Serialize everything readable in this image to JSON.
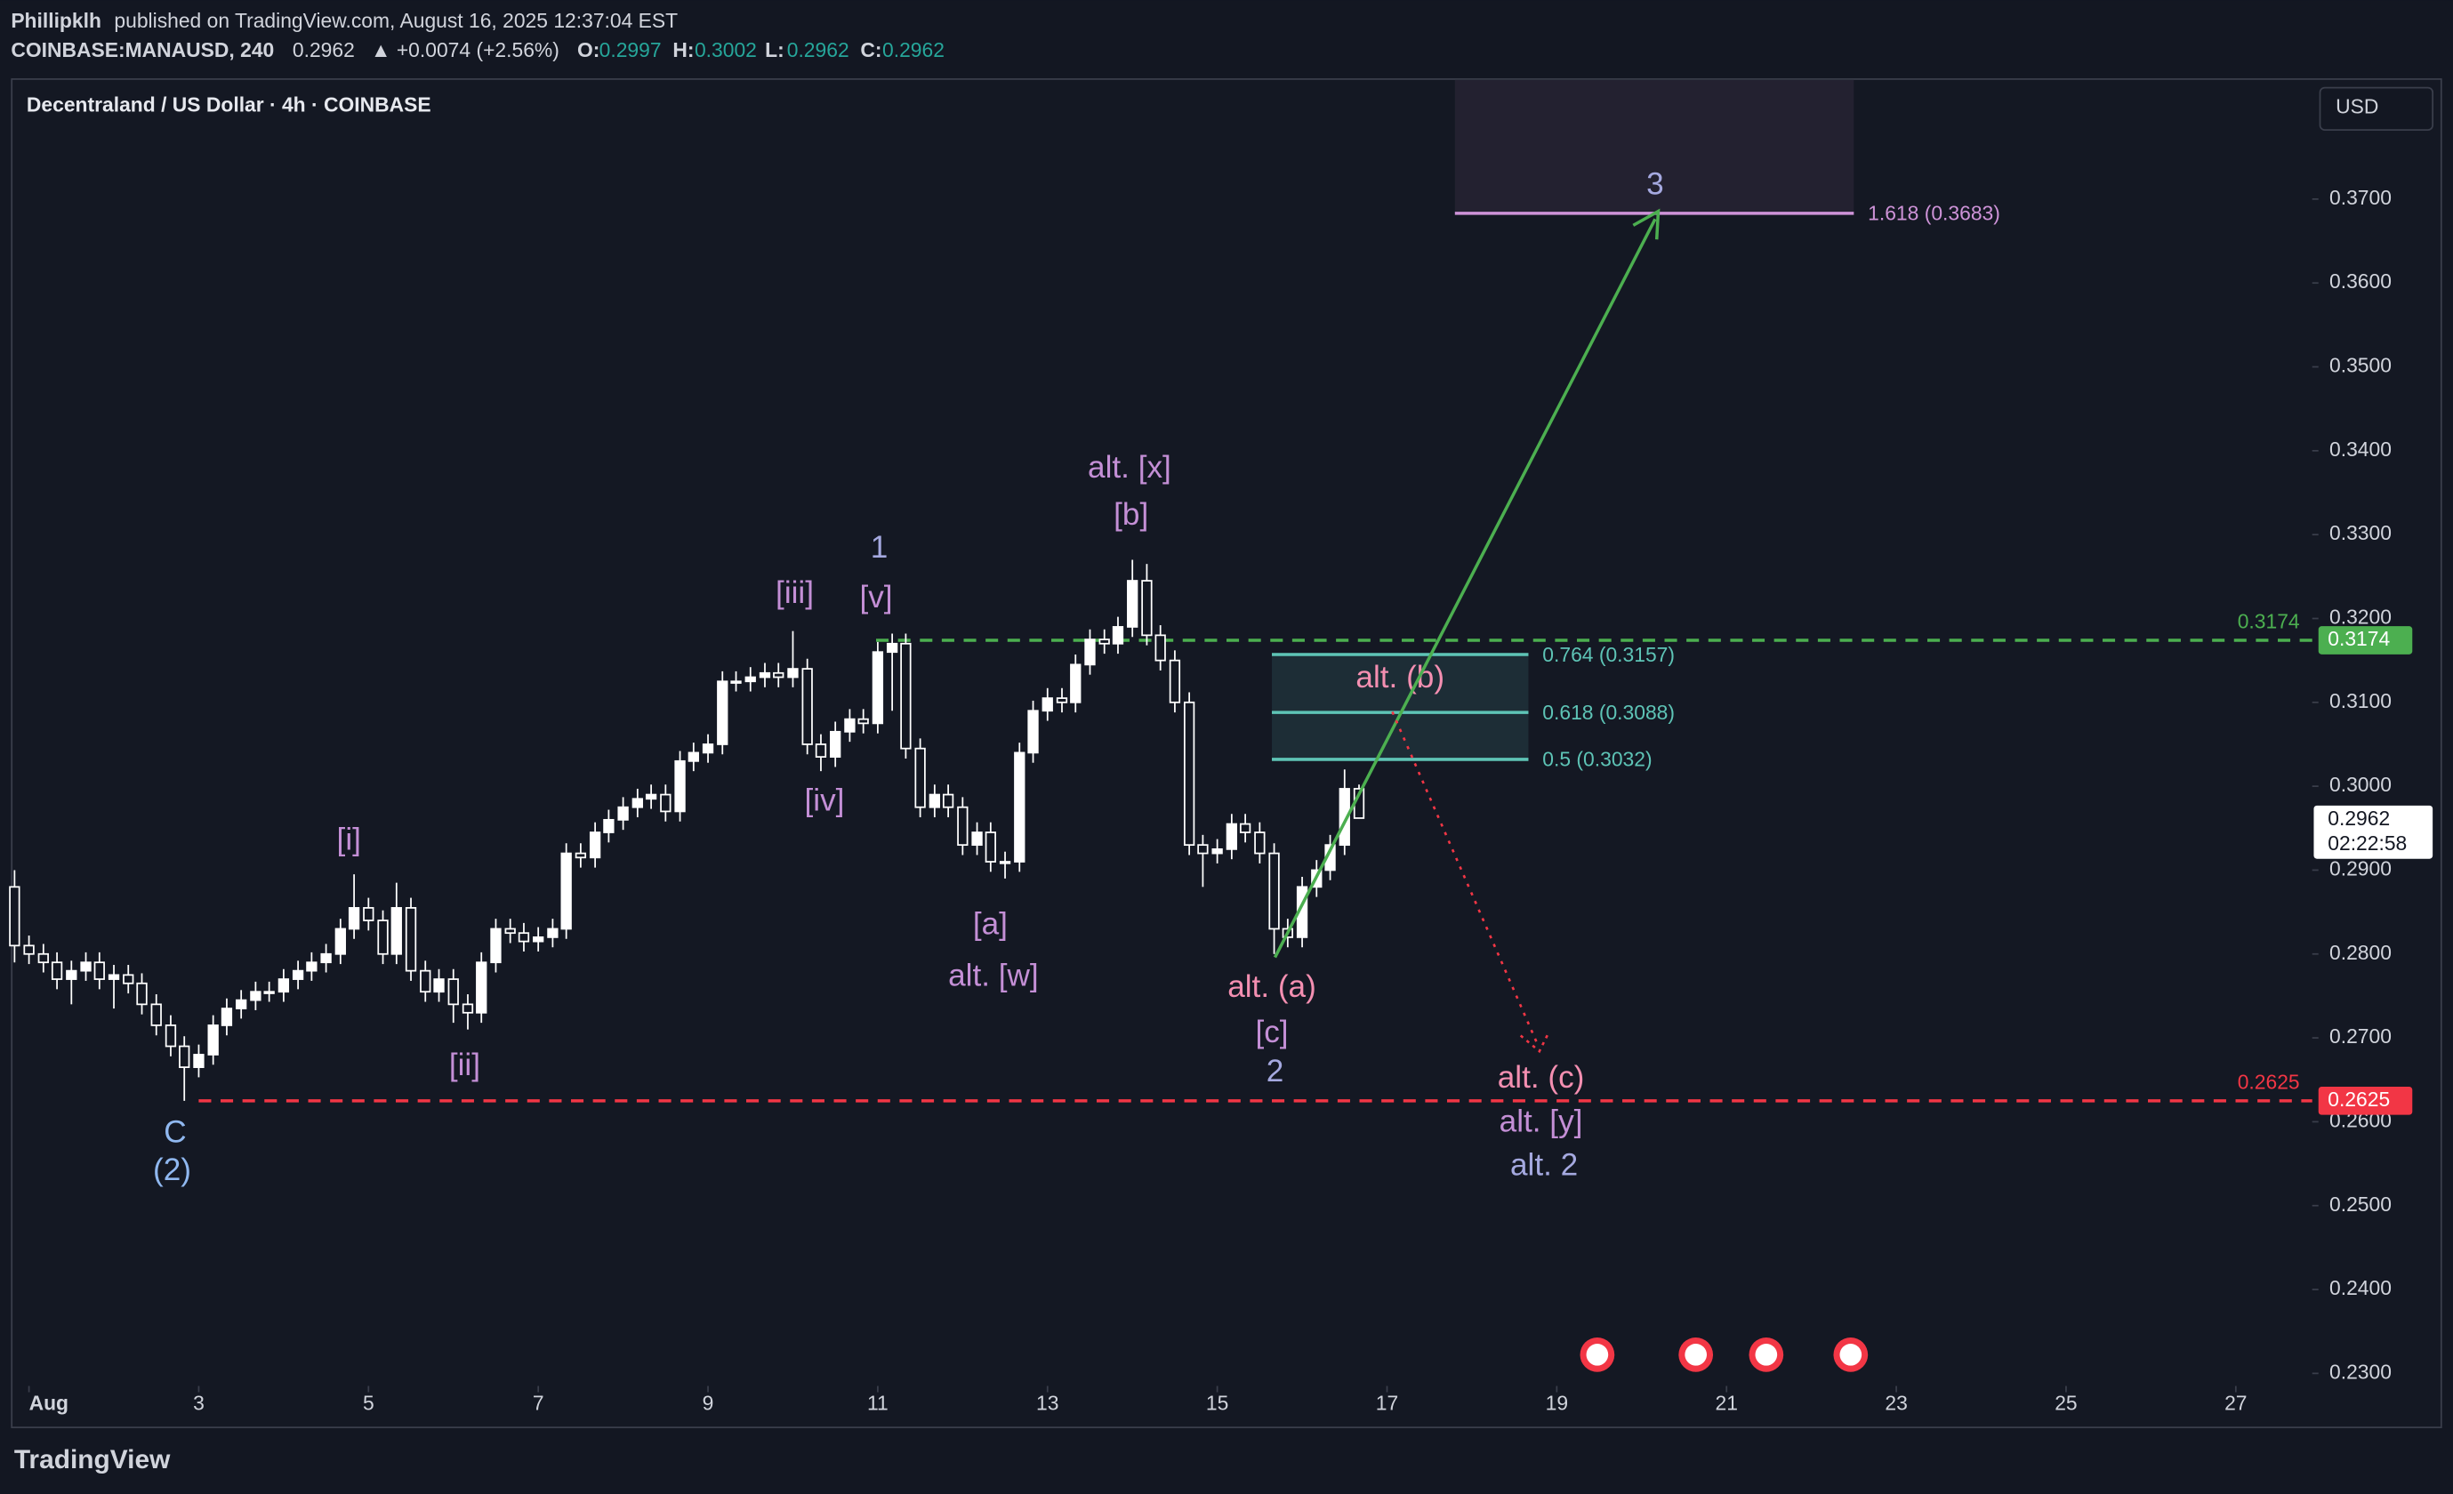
{
  "header": {
    "publisher": "Phillipklh",
    "published": "published on TradingView.com, August 16, 2025 12:37:04 EST",
    "symbol": "COINBASE:MANAUSD, 240",
    "change": "▲ +0.0074 (+2.56%)",
    "ohlc_keys": [
      "O:",
      "H:",
      "L:",
      "C:"
    ]
  },
  "logo": "TradingView",
  "chart_data": {
    "type": "candlestick",
    "title": "Decentraland / US Dollar · 4h · COINBASE",
    "currency": "USD",
    "x": [
      0.83,
      1,
      1.17,
      1.33,
      1.5,
      1.67,
      1.83,
      2,
      2.17,
      2.33,
      2.5,
      2.67,
      2.83,
      3,
      3.17,
      3.33,
      3.5,
      3.67,
      3.83,
      4,
      4.17,
      4.33,
      4.5,
      4.67,
      4.83,
      5,
      5.17,
      5.33,
      5.5,
      5.67,
      5.83,
      6,
      6.17,
      6.33,
      6.5,
      6.67,
      6.83,
      7,
      7.17,
      7.33,
      7.5,
      7.67,
      7.83,
      8,
      8.17,
      8.33,
      8.5,
      8.67,
      8.83,
      9,
      9.17,
      9.33,
      9.5,
      9.67,
      9.83,
      10,
      10.17,
      10.33,
      10.5,
      10.67,
      10.83,
      11,
      11.17,
      11.33,
      11.5,
      11.67,
      11.83,
      12,
      12.17,
      12.33,
      12.5,
      12.67,
      12.83,
      13,
      13.17,
      13.33,
      13.5,
      13.67,
      13.83,
      14,
      14.17,
      14.33,
      14.5,
      14.67,
      14.83,
      15,
      15.17,
      15.33,
      15.5,
      15.67,
      15.83,
      16,
      16.17,
      16.33,
      16.5,
      16.67
    ],
    "open": [
      0.288,
      0.281,
      0.28,
      0.279,
      0.277,
      0.278,
      0.279,
      0.277,
      0.2775,
      0.2765,
      0.274,
      0.2715,
      0.269,
      0.2665,
      0.268,
      0.2715,
      0.2735,
      0.2745,
      0.2755,
      0.2755,
      0.277,
      0.278,
      0.279,
      0.28,
      0.283,
      0.2855,
      0.284,
      0.28,
      0.2855,
      0.278,
      0.2755,
      0.277,
      0.274,
      0.273,
      0.279,
      0.283,
      0.2825,
      0.2815,
      0.282,
      0.283,
      0.292,
      0.2915,
      0.2945,
      0.296,
      0.2975,
      0.2985,
      0.299,
      0.297,
      0.303,
      0.304,
      0.305,
      0.3125,
      0.3125,
      0.313,
      0.3135,
      0.313,
      0.314,
      0.305,
      0.3035,
      0.3065,
      0.308,
      0.3075,
      0.316,
      0.317,
      0.3045,
      0.2975,
      0.299,
      0.2975,
      0.293,
      0.2945,
      0.291,
      0.291,
      0.304,
      0.309,
      0.3105,
      0.31,
      0.3145,
      0.3175,
      0.317,
      0.319,
      0.3245,
      0.318,
      0.315,
      0.31,
      0.293,
      0.292,
      0.2925,
      0.2955,
      0.2945,
      0.292,
      0.283,
      0.282,
      0.288,
      0.29,
      0.293,
      0.2997
    ],
    "high": [
      0.29,
      0.2822,
      0.2812,
      0.2802,
      0.2792,
      0.2802,
      0.2802,
      0.2787,
      0.2787,
      0.2777,
      0.2752,
      0.2727,
      0.2702,
      0.2692,
      0.2727,
      0.2747,
      0.2757,
      0.2767,
      0.2767,
      0.2782,
      0.2792,
      0.2802,
      0.2812,
      0.2842,
      0.2895,
      0.2867,
      0.2852,
      0.2885,
      0.2867,
      0.2792,
      0.2782,
      0.2782,
      0.2752,
      0.2802,
      0.2842,
      0.2842,
      0.2837,
      0.2832,
      0.2842,
      0.2932,
      0.2932,
      0.2957,
      0.2972,
      0.2987,
      0.2997,
      0.3002,
      0.3002,
      0.3042,
      0.3052,
      0.3062,
      0.3137,
      0.3137,
      0.3142,
      0.3147,
      0.3147,
      0.3185,
      0.3152,
      0.3062,
      0.3077,
      0.3092,
      0.3092,
      0.3172,
      0.3182,
      0.3182,
      0.3057,
      0.3002,
      0.3002,
      0.2987,
      0.2957,
      0.2957,
      0.2922,
      0.3052,
      0.3102,
      0.3117,
      0.3117,
      0.3157,
      0.3187,
      0.3187,
      0.3202,
      0.327,
      0.3265,
      0.3192,
      0.3162,
      0.3112,
      0.2942,
      0.2937,
      0.2967,
      0.2967,
      0.2957,
      0.2932,
      0.2842,
      0.2892,
      0.2912,
      0.2942,
      0.302,
      0.3002
    ],
    "low": [
      0.279,
      0.2788,
      0.2778,
      0.2758,
      0.274,
      0.2768,
      0.2758,
      0.2735,
      0.2753,
      0.2728,
      0.2703,
      0.2678,
      0.2625,
      0.2653,
      0.2668,
      0.2703,
      0.2723,
      0.2733,
      0.2743,
      0.2743,
      0.2758,
      0.2768,
      0.2778,
      0.2788,
      0.2818,
      0.2828,
      0.2788,
      0.2788,
      0.2768,
      0.2743,
      0.2743,
      0.2718,
      0.271,
      0.2718,
      0.2778,
      0.2813,
      0.2803,
      0.2803,
      0.2808,
      0.2818,
      0.2903,
      0.2903,
      0.2933,
      0.2948,
      0.2963,
      0.2973,
      0.2958,
      0.2958,
      0.3018,
      0.3028,
      0.3038,
      0.3113,
      0.3113,
      0.3118,
      0.3118,
      0.3118,
      0.3038,
      0.3018,
      0.3023,
      0.3053,
      0.3063,
      0.3063,
      0.309,
      0.3033,
      0.2963,
      0.2963,
      0.2963,
      0.2918,
      0.2918,
      0.2898,
      0.289,
      0.2898,
      0.3028,
      0.3078,
      0.3088,
      0.3088,
      0.3133,
      0.3158,
      0.3158,
      0.3178,
      0.3168,
      0.3138,
      0.3088,
      0.2918,
      0.288,
      0.2908,
      0.2913,
      0.2933,
      0.2908,
      0.28,
      0.2808,
      0.2808,
      0.2868,
      0.2888,
      0.2918,
      0.2962
    ],
    "close": [
      0.281,
      0.28,
      0.279,
      0.277,
      0.278,
      0.279,
      0.277,
      0.2775,
      0.2765,
      0.274,
      0.2715,
      0.269,
      0.2665,
      0.268,
      0.2715,
      0.2735,
      0.2745,
      0.2755,
      0.2755,
      0.277,
      0.278,
      0.279,
      0.28,
      0.283,
      0.2855,
      0.284,
      0.28,
      0.2855,
      0.278,
      0.2755,
      0.277,
      0.274,
      0.273,
      0.279,
      0.283,
      0.2825,
      0.2815,
      0.282,
      0.283,
      0.292,
      0.2915,
      0.2945,
      0.296,
      0.2975,
      0.2985,
      0.299,
      0.297,
      0.303,
      0.304,
      0.305,
      0.3125,
      0.3125,
      0.313,
      0.3135,
      0.313,
      0.314,
      0.305,
      0.3035,
      0.3065,
      0.308,
      0.3075,
      0.316,
      0.317,
      0.3045,
      0.2975,
      0.299,
      0.2975,
      0.293,
      0.2945,
      0.291,
      0.291,
      0.304,
      0.309,
      0.3105,
      0.31,
      0.3145,
      0.3175,
      0.317,
      0.319,
      0.3245,
      0.318,
      0.315,
      0.31,
      0.293,
      0.292,
      0.2925,
      0.2955,
      0.2945,
      0.292,
      0.283,
      0.282,
      0.288,
      0.29,
      0.293,
      0.2997,
      0.2962
    ],
    "color": "#ffffff",
    "xlim": [
      0.806,
      27.9
    ],
    "xticks": [
      {
        "value": 1,
        "label": "Aug"
      },
      3,
      5,
      7,
      9,
      11,
      13,
      15,
      17,
      19,
      21,
      23,
      25,
      27
    ],
    "ylim": [
      0.2285,
      0.3844
    ],
    "yticks": [
      {
        "value": 0.23,
        "label": "0.2300"
      },
      {
        "value": 0.24,
        "label": "0.2400"
      },
      {
        "value": 0.25,
        "label": "0.2500"
      },
      {
        "value": 0.26,
        "label": "0.2600"
      },
      {
        "value": 0.27,
        "label": "0.2700"
      },
      {
        "value": 0.28,
        "label": "0.2800"
      },
      {
        "value": 0.29,
        "label": "0.2900"
      },
      {
        "value": 0.3,
        "label": "0.3000"
      },
      {
        "value": 0.31,
        "label": "0.3100"
      },
      {
        "value": 0.32,
        "label": "0.3200"
      },
      {
        "value": 0.33,
        "label": "0.3300"
      },
      {
        "value": 0.34,
        "label": "0.3400"
      },
      {
        "value": 0.35,
        "label": "0.3500"
      },
      {
        "value": 0.36,
        "label": "0.3600"
      },
      {
        "value": 0.37,
        "label": "0.3700"
      }
    ],
    "last_price": 0.2962,
    "countdown": "02:22:58",
    "levels": [
      {
        "value": 0.3174,
        "color": "#4caf50"
      },
      {
        "value": 0.2625,
        "color": "#f23645"
      }
    ],
    "fib": [
      {
        "value": 0.3157,
        "label": "0.764 (0.3157)"
      },
      {
        "value": 0.3088,
        "label": "0.618 (0.3088)"
      },
      {
        "value": 0.3032,
        "label": "0.5 (0.3032)"
      }
    ],
    "target": {
      "value": 0.3683,
      "label": "1.618 (0.3683)"
    },
    "annotations": [
      "alt. [x]",
      "[b]",
      "1",
      "[v]",
      "[iii]",
      "[iv]",
      "[i]",
      "[ii]",
      "C",
      "(2)",
      "[a]",
      "alt. [w]",
      "alt. (a)",
      "[c]",
      "2",
      "alt. (b)",
      "alt. (c)",
      "alt. [y]",
      "alt. 2",
      "3"
    ]
  }
}
